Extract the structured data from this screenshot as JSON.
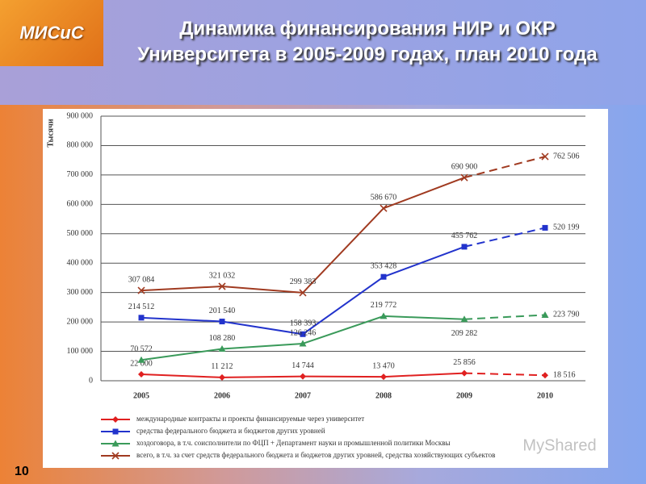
{
  "logo": "МИСиС",
  "slide_number": "10",
  "watermark": "MyShared",
  "chart_data": {
    "type": "line",
    "title": "Динамика финансирования НИР и ОКР Университета в 2005-2009 годах, план 2010 года",
    "y_label": "Тысячи",
    "categories": [
      "2005",
      "2006",
      "2007",
      "2008",
      "2009",
      "2010"
    ],
    "ylim": [
      0,
      900000
    ],
    "yticks": [
      0,
      {
        "value": 100000,
        "label": "100 000"
      },
      {
        "value": 200000,
        "label": "200 000"
      },
      {
        "value": 300000,
        "label": "300 000"
      },
      {
        "value": 400000,
        "label": "400 000"
      },
      {
        "value": 500000,
        "label": "500 000"
      },
      {
        "value": 600000,
        "label": "600 000"
      },
      {
        "value": 700000,
        "label": "700 000"
      },
      {
        "value": 800000,
        "label": "800 000"
      },
      {
        "value": 900000,
        "label": "900 000"
      }
    ],
    "grid": true,
    "series": [
      {
        "name": "международные контракты и проекты финансируемые через университет",
        "color": "#e02020",
        "marker": "diamond",
        "values": [
          22000,
          11212,
          14744,
          13470,
          25856,
          18516
        ],
        "value_labels": [
          "22 000",
          "11 212",
          "14 744",
          "13 470",
          "25 856",
          "18 516"
        ]
      },
      {
        "name": "средства федерального бюджета и бюджетов других уровней",
        "color": "#2233cc",
        "marker": "square",
        "values": [
          214512,
          201540,
          158393,
          353428,
          455762,
          520199
        ],
        "value_labels": [
          "214 512",
          "201 540",
          "158 393",
          "353 428",
          "455 762",
          "520 199"
        ]
      },
      {
        "name": "хоздоговора, в т.ч. соисполнители по ФЦП + Департамент науки и промышленной политики Москвы",
        "color": "#3a9a5a",
        "marker": "triangle",
        "values": [
          70572,
          108280,
          126246,
          219772,
          209282,
          223790
        ],
        "value_labels": [
          "70 572",
          "108 280",
          "126 246",
          "219 772",
          "209 282",
          "223 790"
        ]
      },
      {
        "name": "всего, в т.ч. за счет средств федерального бюджета и бюджетов других уровней, средства хозяйствующих субъектов",
        "color": "#a03a20",
        "marker": "x",
        "values": [
          307084,
          321032,
          299383,
          586670,
          690900,
          762506
        ],
        "value_labels": [
          "307 084",
          "321 032",
          "299 383",
          "586 670",
          "690 900",
          "762 506"
        ]
      }
    ]
  }
}
